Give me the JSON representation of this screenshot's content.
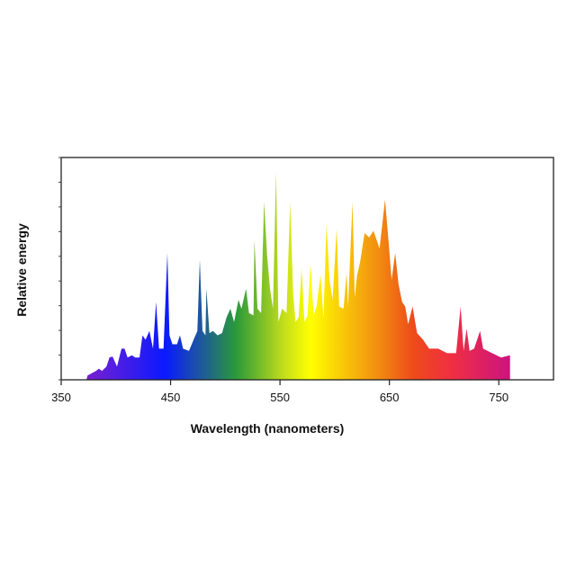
{
  "chart_data": {
    "type": "area",
    "title": "",
    "xlabel": "Wavelength (nanometers)",
    "ylabel": "Relative energy",
    "xlim": [
      350,
      800
    ],
    "ylim": [
      0,
      1
    ],
    "x_ticks": [
      350,
      450,
      550,
      650,
      750
    ],
    "x_tick_labels": [
      "350",
      "450",
      "550",
      "650",
      "750"
    ],
    "y_tick_count": 10,
    "y_tick_labels_shown": false,
    "grid": false,
    "legend": "none",
    "fill": "visible-spectrum gradient",
    "gradient_stops": [
      {
        "nm": 373,
        "color": "#7a1fd0"
      },
      {
        "nm": 445,
        "color": "#0a1aff"
      },
      {
        "nm": 482,
        "color": "#1f6090"
      },
      {
        "nm": 510,
        "color": "#2a9a3a"
      },
      {
        "nm": 555,
        "color": "#c8e01a"
      },
      {
        "nm": 578,
        "color": "#ffff00"
      },
      {
        "nm": 640,
        "color": "#f28c10"
      },
      {
        "nm": 672,
        "color": "#ee4a1a"
      },
      {
        "nm": 705,
        "color": "#f03040"
      },
      {
        "nm": 760,
        "color": "#cc1480"
      }
    ],
    "x": [
      373.0,
      374.1,
      381.8,
      384.5,
      387.3,
      391.4,
      394.1,
      396.9,
      401.0,
      405.1,
      407.9,
      410.6,
      414.7,
      417.5,
      421.6,
      424.3,
      427.1,
      430.6,
      433.9,
      436.7,
      439.4,
      443.5,
      447.1,
      449.0,
      451.7,
      455.9,
      458.6,
      461.4,
      466.8,
      471.0,
      474.5,
      476.7,
      479.2,
      481.9,
      482.7,
      485.5,
      488.8,
      492.9,
      497.0,
      501.1,
      504.7,
      508.0,
      512.1,
      514.8,
      519.0,
      521.7,
      525.8,
      526.6,
      529.4,
      532.7,
      535.4,
      538.2,
      540.9,
      543.6,
      546.4,
      548.6,
      551.9,
      556.0,
      559.3,
      562.0,
      564.2,
      567.0,
      569.7,
      572.4,
      575.2,
      577.9,
      580.7,
      583.4,
      587.0,
      589.7,
      592.5,
      595.2,
      598.0,
      601.8,
      604.0,
      608.1,
      610.9,
      612.2,
      616.3,
      618.3,
      620.5,
      623.2,
      627.3,
      631.4,
      635.5,
      638.3,
      641.0,
      646.0,
      649.3,
      652.0,
      655.3,
      658.3,
      661.6,
      664.4,
      667.1,
      671.2,
      675.3,
      680.8,
      686.3,
      694.5,
      702.8,
      711.0,
      715.1,
      717.8,
      720.6,
      723.3,
      727.4,
      732.9,
      735.7,
      743.9,
      752.1,
      760.3,
      760.3
    ],
    "y": [
      0.0,
      0.02,
      0.04,
      0.05,
      0.04,
      0.06,
      0.1,
      0.105,
      0.06,
      0.14,
      0.14,
      0.1,
      0.11,
      0.1,
      0.1,
      0.2,
      0.18,
      0.22,
      0.14,
      0.35,
      0.14,
      0.14,
      0.57,
      0.2,
      0.16,
      0.16,
      0.2,
      0.14,
      0.13,
      0.18,
      0.22,
      0.54,
      0.22,
      0.2,
      0.41,
      0.21,
      0.22,
      0.2,
      0.21,
      0.28,
      0.32,
      0.26,
      0.36,
      0.32,
      0.41,
      0.3,
      0.29,
      0.63,
      0.32,
      0.3,
      0.8,
      0.56,
      0.41,
      0.32,
      0.93,
      0.26,
      0.32,
      0.3,
      0.8,
      0.39,
      0.26,
      0.28,
      0.5,
      0.26,
      0.29,
      0.52,
      0.29,
      0.33,
      0.47,
      0.28,
      0.7,
      0.45,
      0.36,
      0.68,
      0.33,
      0.32,
      0.48,
      0.33,
      0.8,
      0.37,
      0.47,
      0.53,
      0.66,
      0.64,
      0.67,
      0.63,
      0.59,
      0.81,
      0.62,
      0.45,
      0.57,
      0.43,
      0.35,
      0.33,
      0.25,
      0.33,
      0.21,
      0.18,
      0.14,
      0.14,
      0.12,
      0.12,
      0.33,
      0.13,
      0.23,
      0.13,
      0.14,
      0.22,
      0.14,
      0.12,
      0.1,
      0.11,
      0.0
    ]
  }
}
